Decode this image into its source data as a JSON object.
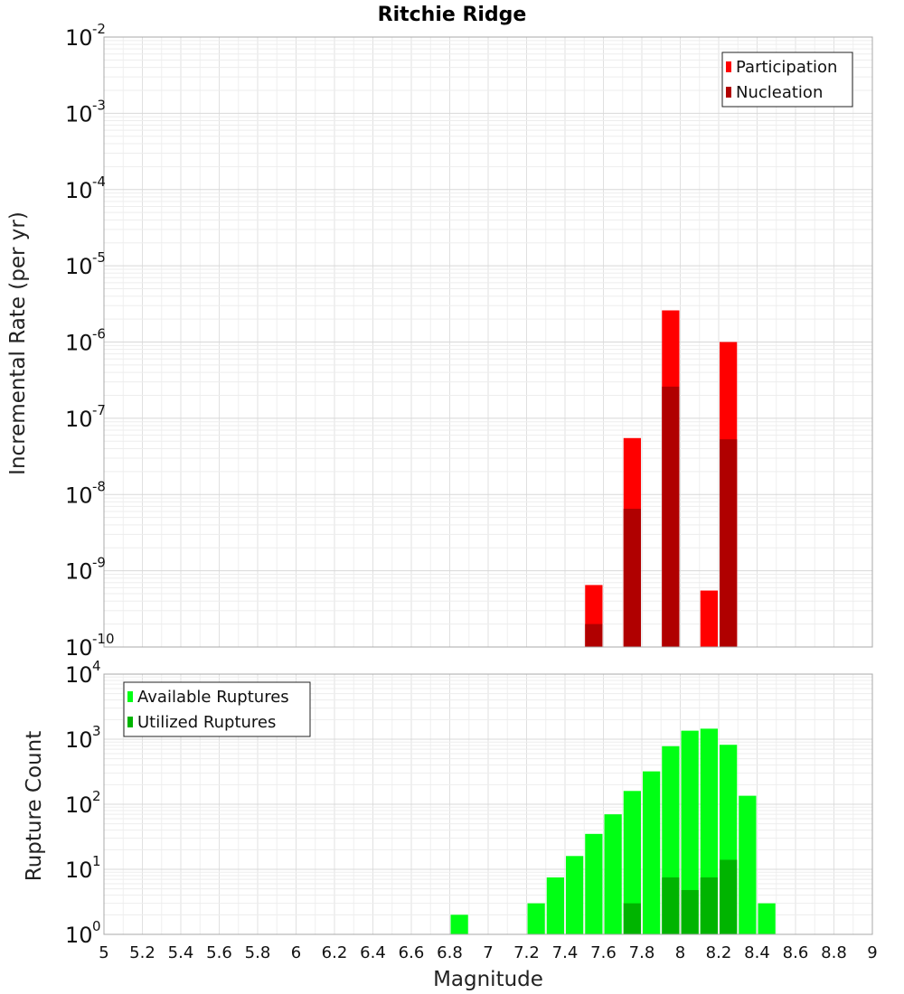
{
  "chart_data": [
    {
      "type": "bar",
      "title": "Ritchie Ridge",
      "xlabel": "",
      "ylabel": "Incremental Rate (per yr)",
      "yscale": "log",
      "xlim": [
        5,
        9
      ],
      "ylim_exponent": [
        -10,
        -2
      ],
      "grid": true,
      "legend_position": "top-right",
      "series": [
        {
          "name": "Participation",
          "color": "#ff0000",
          "points": [
            {
              "x": 7.55,
              "y": 6.5e-10
            },
            {
              "x": 7.75,
              "y": 5.5e-08
            },
            {
              "x": 7.95,
              "y": 2.6e-06
            },
            {
              "x": 8.15,
              "y": 5.5e-10
            },
            {
              "x": 8.25,
              "y": 1e-06
            }
          ]
        },
        {
          "name": "Nucleation",
          "color": "#b00000",
          "points": [
            {
              "x": 7.55,
              "y": 2e-10
            },
            {
              "x": 7.75,
              "y": 6.5e-09
            },
            {
              "x": 7.95,
              "y": 2.6e-07
            },
            {
              "x": 8.25,
              "y": 5.3e-08
            }
          ]
        }
      ]
    },
    {
      "type": "bar",
      "title": "",
      "xlabel": "Magnitude",
      "ylabel": "Rupture Count",
      "yscale": "log",
      "xlim": [
        5,
        9
      ],
      "ylim_exponent": [
        0,
        4
      ],
      "grid": true,
      "legend_position": "top-left",
      "series": [
        {
          "name": "Available Ruptures",
          "color": "#00ff14",
          "points": [
            {
              "x": 6.85,
              "y": 2
            },
            {
              "x": 6.95,
              "y": 1
            },
            {
              "x": 7.25,
              "y": 3
            },
            {
              "x": 7.35,
              "y": 7.5
            },
            {
              "x": 7.45,
              "y": 16
            },
            {
              "x": 7.55,
              "y": 35
            },
            {
              "x": 7.65,
              "y": 70
            },
            {
              "x": 7.75,
              "y": 160
            },
            {
              "x": 7.85,
              "y": 320
            },
            {
              "x": 7.95,
              "y": 780
            },
            {
              "x": 8.05,
              "y": 1350
            },
            {
              "x": 8.15,
              "y": 1450
            },
            {
              "x": 8.25,
              "y": 820
            },
            {
              "x": 8.35,
              "y": 135
            },
            {
              "x": 8.45,
              "y": 3
            }
          ]
        },
        {
          "name": "Utilized Ruptures",
          "color": "#00b400",
          "points": [
            {
              "x": 7.55,
              "y": 1
            },
            {
              "x": 7.75,
              "y": 3
            },
            {
              "x": 7.95,
              "y": 7.5
            },
            {
              "x": 8.05,
              "y": 4.8
            },
            {
              "x": 8.15,
              "y": 7.5
            },
            {
              "x": 8.25,
              "y": 14
            }
          ]
        }
      ]
    }
  ],
  "x_ticks": [
    "5",
    "5.2",
    "5.4",
    "5.6",
    "5.8",
    "6",
    "6.2",
    "6.4",
    "6.6",
    "6.8",
    "7",
    "7.2",
    "7.4",
    "7.6",
    "7.8",
    "8",
    "8.2",
    "8.4",
    "8.6",
    "8.8",
    "9"
  ],
  "log_base_label": "10"
}
